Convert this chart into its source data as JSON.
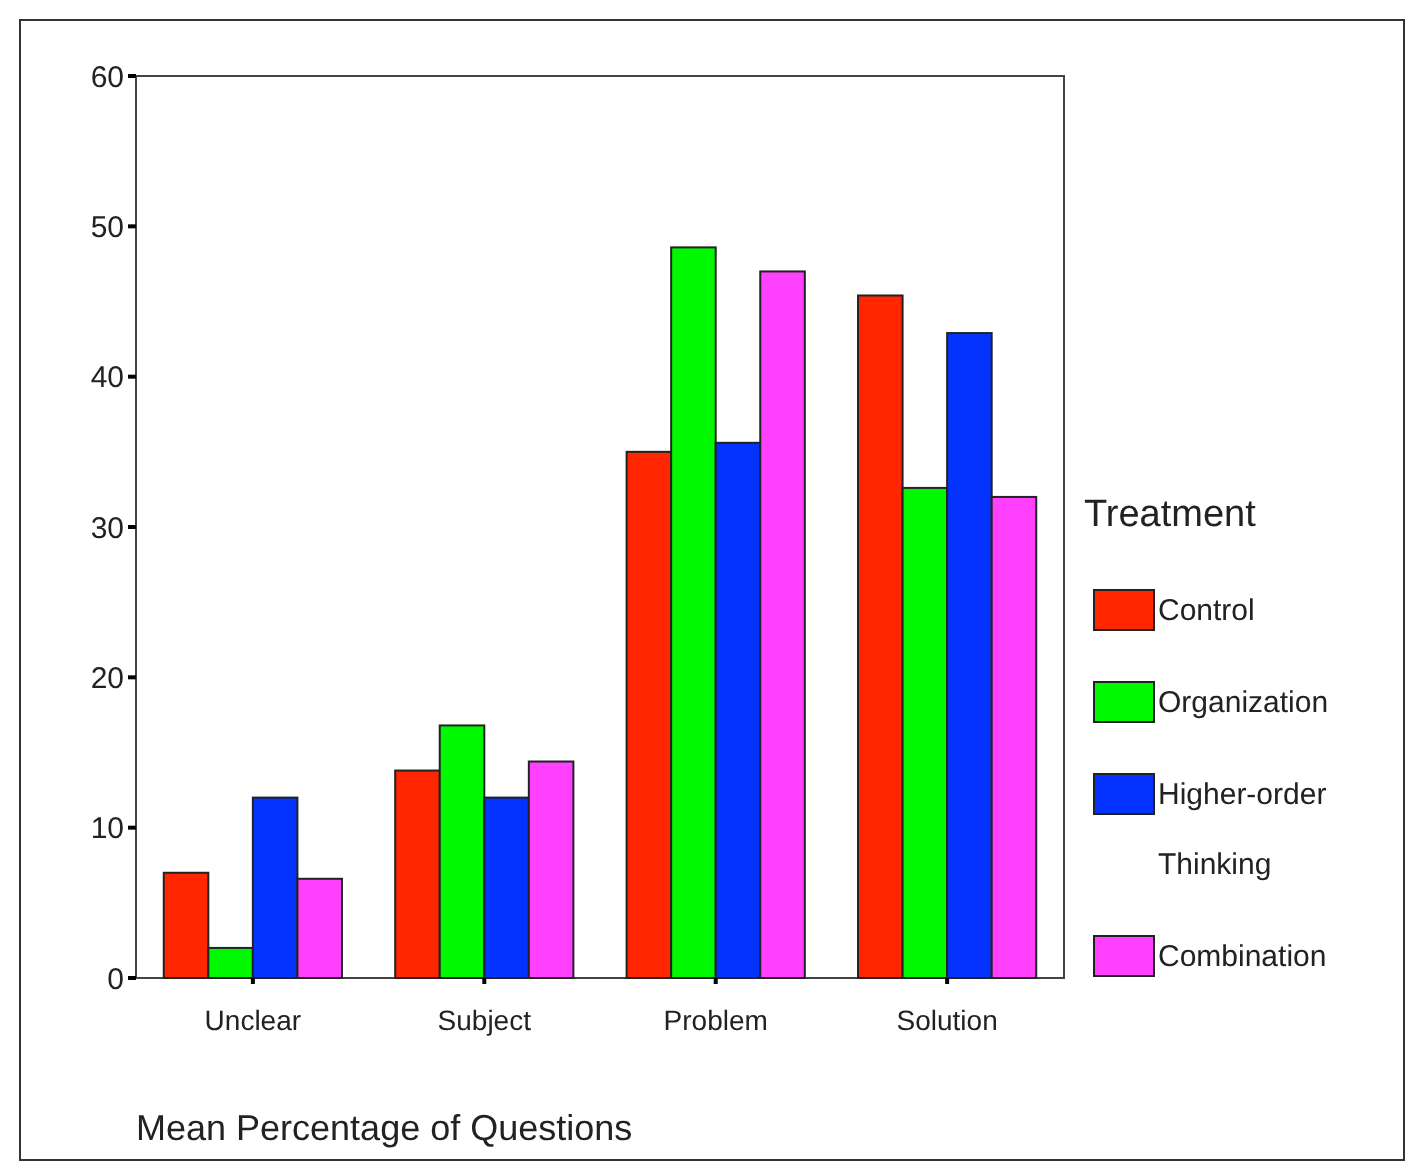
{
  "chart_data": {
    "type": "bar",
    "xlabel": "Mean Percentage of Questions",
    "legend_title": "Treatment",
    "legend": "right",
    "grid": false,
    "categories": [
      "Unclear",
      "Subject",
      "Problem",
      "Solution"
    ],
    "ylim": [
      0,
      60
    ],
    "yticks": [
      0,
      10,
      20,
      30,
      40,
      50,
      60
    ],
    "series": [
      {
        "name": "Control",
        "color": "#ff2600",
        "values": [
          7.0,
          13.8,
          35.0,
          45.4
        ]
      },
      {
        "name": "Organization",
        "color": "#00f900",
        "values": [
          2.0,
          16.8,
          48.6,
          32.6
        ]
      },
      {
        "name": "Higher-order Thinking",
        "color": "#0433ff",
        "values": [
          12.0,
          12.0,
          35.6,
          42.9
        ]
      },
      {
        "name": "Combination",
        "color": "#ff40ff",
        "values": [
          6.6,
          14.4,
          47.0,
          32.0
        ]
      }
    ]
  }
}
